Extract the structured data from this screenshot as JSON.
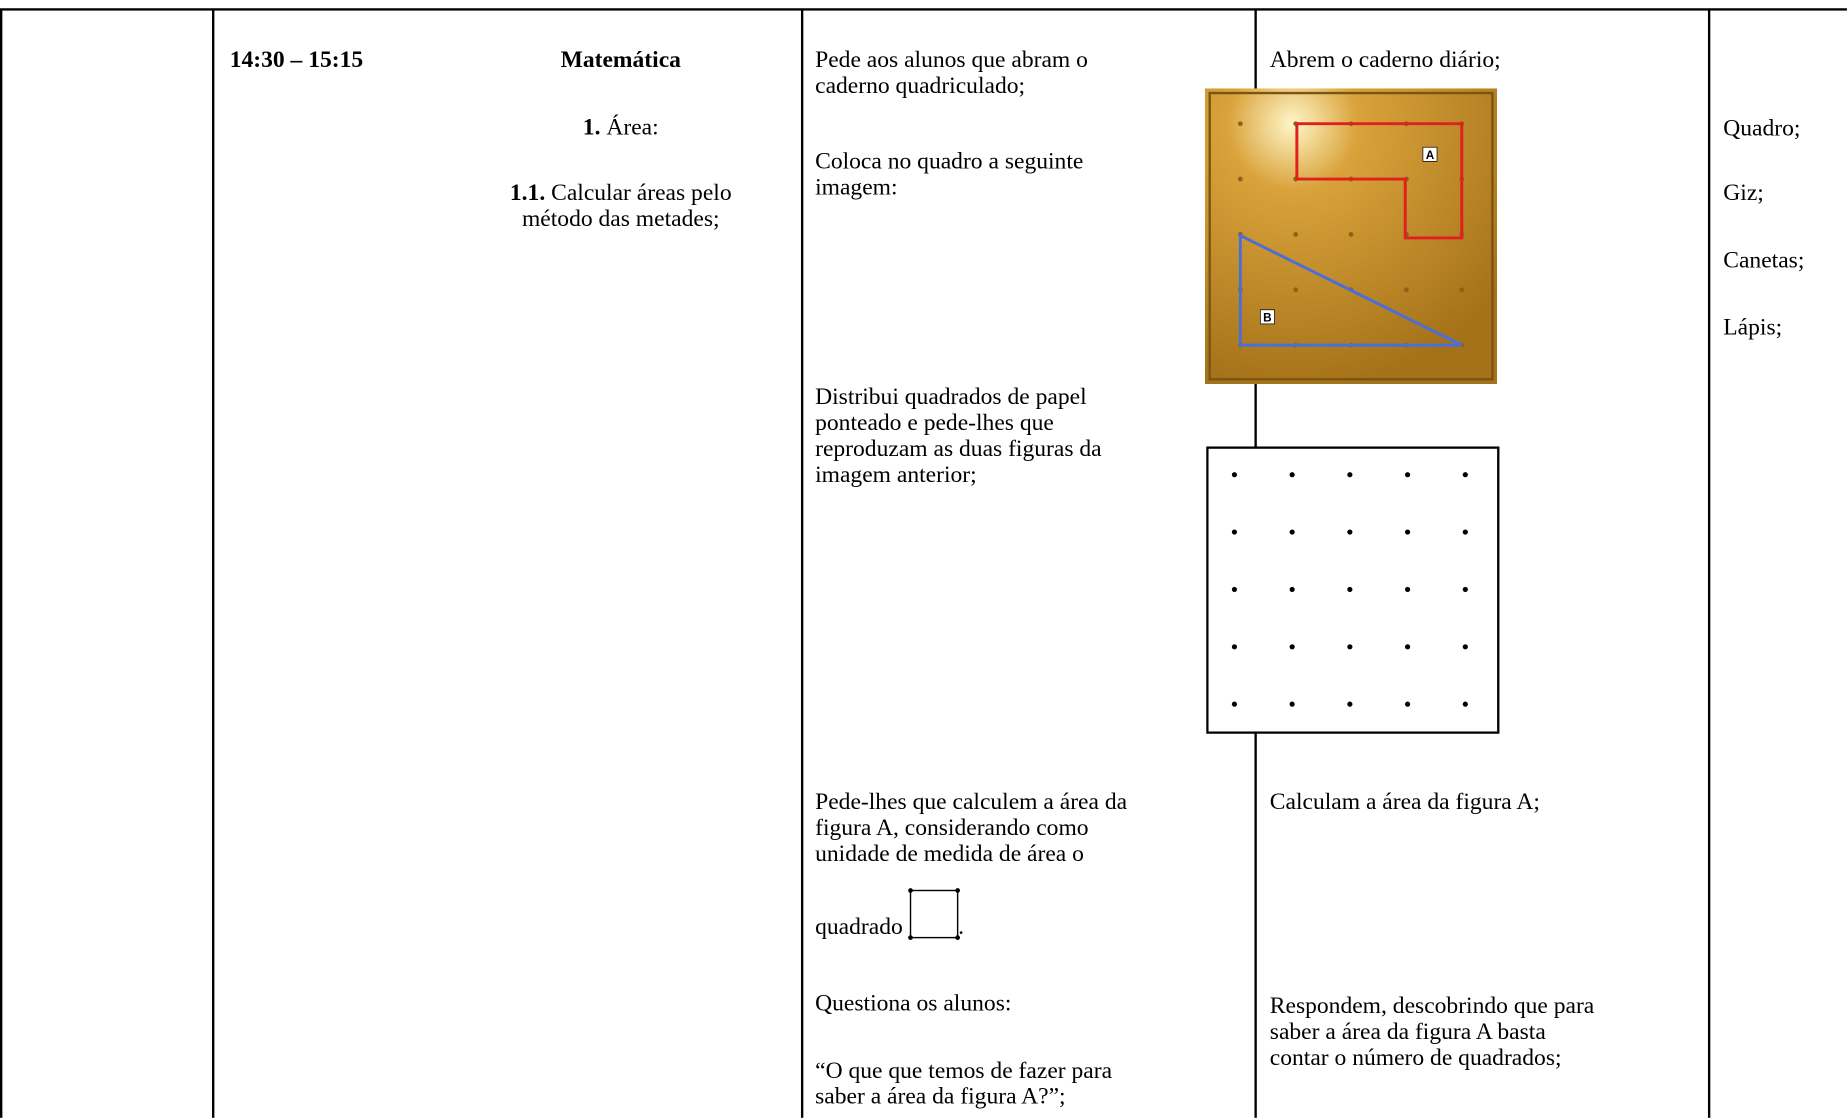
{
  "row": {
    "time": "14:30 – 15:15",
    "subject": "Matemática",
    "topic": {
      "number": "1.",
      "text": "Área:"
    },
    "subtopic": {
      "number": "1.1.",
      "lines": [
        "Calcular áreas pelo",
        "método das metades;"
      ]
    },
    "teacher": [
      [
        "Pede aos alunos que abram o",
        "caderno quadriculado;"
      ],
      [
        "Coloca no quadro a seguinte",
        "imagem:"
      ],
      [
        "Distribui quadrados de papel",
        "ponteado e pede-lhes que",
        "reproduzam as duas figuras da",
        "imagem anterior;"
      ],
      [
        "Pede-lhes que calculem a área da",
        "figura A, considerando como",
        "unidade de medida de área o"
      ],
      [
        "quadrado",
        "."
      ],
      [
        "Questiona os alunos:"
      ],
      [
        "“O que que temos de fazer para",
        "saber a área da figura A?”;"
      ]
    ],
    "students": [
      [
        "Abrem o caderno diário;"
      ],
      [
        "Calculam a área da figura A;"
      ],
      [
        "Respondem, descobrindo que para",
        "saber a área da figura A basta",
        "contar o número de quadrados;"
      ]
    ],
    "figure_labels": [
      "A",
      "B"
    ],
    "materials": [
      "Quadro;",
      "Giz;",
      "Canetas;",
      "Lápis;"
    ]
  }
}
